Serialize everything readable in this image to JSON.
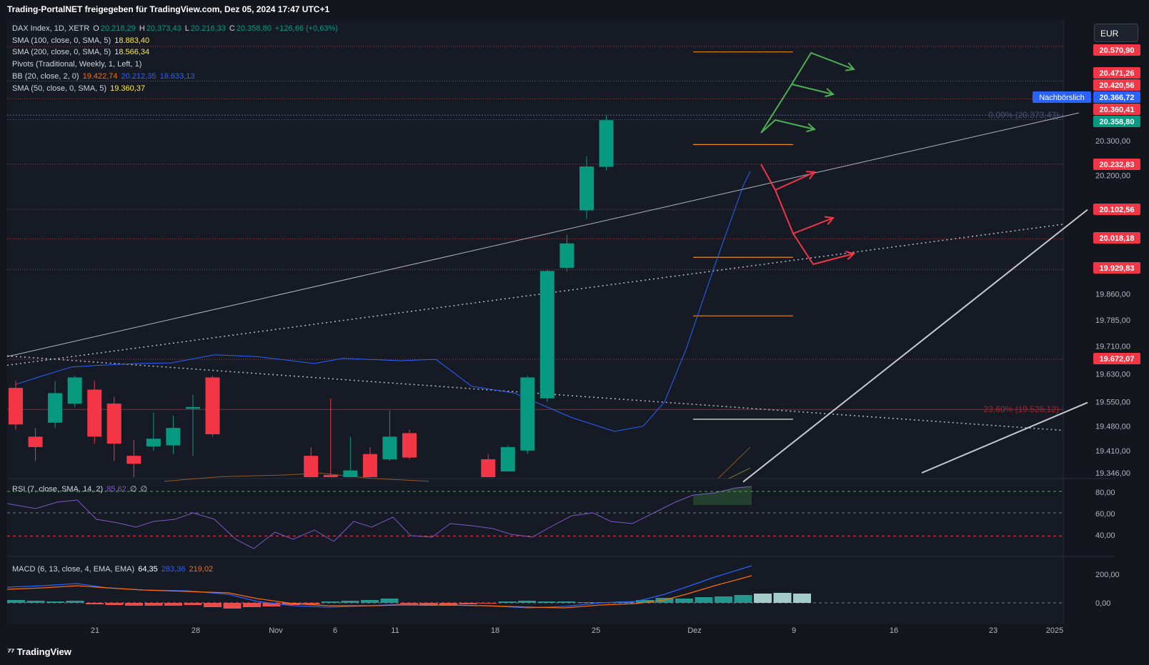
{
  "header": {
    "text": "Trading-PortalNET freigegeben für TradingView.com, Dez 05, 2024 17:47 UTC+1"
  },
  "footer": {
    "logo_text": "TradingView"
  },
  "currency_button": "EUR",
  "legend": {
    "symbol": "DAX Index, 1D, XETR",
    "o_label": "O",
    "o_value": "20.218,29",
    "h_label": "H",
    "h_value": "20.373,43",
    "l_label": "L",
    "l_value": "20.216,33",
    "c_label": "C",
    "c_value": "20.358,80",
    "change": "+126,66 (+0,63%)",
    "sma100_label": "SMA (100, close, 0, SMA, 5)",
    "sma100_value": "18.883,40",
    "sma200_label": "SMA (200, close, 0, SMA, 5)",
    "sma200_value": "18.566,34",
    "pivots_label": "Pivots (Traditional, Weekly, 1, Left, 1)",
    "bb_label": "BB (20, close, 2, 0)",
    "bb_basis": "19.422,74",
    "bb_upper": "20.212,35",
    "bb_lower": "18.633,13",
    "sma50_label": "SMA (50, close, 0, SMA, 5)",
    "sma50_value": "19.360,37",
    "rsi_label": "RSI (7, close, SMA, 14, 2)",
    "rsi_value": "85,62",
    "rsi_extra1": "∅",
    "rsi_extra2": "∅",
    "macd_label": "MACD (6, 13, close, 4, EMA, EMA)",
    "macd_hist": "64,35",
    "macd_line": "283,36",
    "macd_signal": "219,02"
  },
  "colors": {
    "bg": "#14161d",
    "up": "#089981",
    "down": "#f23645",
    "grid": "#1e222d",
    "pivot": "#b2363f",
    "fib": "#e88b17",
    "bb": "#2962ff",
    "sma50": "#f5a623",
    "rsi": "#7e57c2",
    "macd": "#2962ff",
    "signal": "#ff6d00",
    "green_arrow": "#4caf50",
    "red_arrow": "#f23645"
  },
  "chart_data": {
    "type": "candlestick",
    "y_axis_ticks": [
      "20.300,00",
      "20.200,00",
      "19.860,00",
      "19.785,00",
      "19.710,00",
      "19.630,00",
      "19.550,00",
      "19.480,00",
      "19.410,00",
      "19.346,00"
    ],
    "x_axis_ticks": [
      "21",
      "28",
      "Nov",
      "6",
      "11",
      "18",
      "25",
      "Dez",
      "9",
      "16",
      "23",
      "2025"
    ],
    "price_labels": [
      {
        "text": "20.570,90",
        "kind": "pivot"
      },
      {
        "text": "20.471,26",
        "kind": "pivot"
      },
      {
        "text": "20.420,56",
        "kind": "pivot"
      },
      {
        "text": "20.366,72",
        "kind": "post",
        "tag": "Nachbörslich"
      },
      {
        "text": "20.360,41",
        "kind": "pivot"
      },
      {
        "text": "20.358,80",
        "kind": "last"
      },
      {
        "text": "20.232,83",
        "kind": "pivot"
      },
      {
        "text": "20.102,56",
        "kind": "pivot"
      },
      {
        "text": "20.018,18",
        "kind": "pivot"
      },
      {
        "text": "19.929,83",
        "kind": "pivot"
      },
      {
        "text": "19.672,07",
        "kind": "pivot"
      }
    ],
    "fib_labels": [
      "0,00% (20.373,43)",
      "23,60% (19.528,12)"
    ],
    "candles": [
      {
        "o": 19590,
        "h": 19610,
        "l": 19470,
        "c": 19485
      },
      {
        "o": 19450,
        "h": 19475,
        "l": 19380,
        "c": 19420
      },
      {
        "o": 19490,
        "h": 19610,
        "l": 19475,
        "c": 19575
      },
      {
        "o": 19545,
        "h": 19625,
        "l": 19535,
        "c": 19620
      },
      {
        "o": 19585,
        "h": 19610,
        "l": 19430,
        "c": 19450
      },
      {
        "o": 19545,
        "h": 19565,
        "l": 19380,
        "c": 19430
      },
      {
        "o": 19395,
        "h": 19440,
        "l": 19320,
        "c": 19372
      },
      {
        "o": 19422,
        "h": 19520,
        "l": 19410,
        "c": 19444
      },
      {
        "o": 19425,
        "h": 19510,
        "l": 19400,
        "c": 19475
      },
      {
        "o": 19530,
        "h": 19570,
        "l": 19395,
        "c": 19535
      },
      {
        "o": 19620,
        "h": 19625,
        "l": 19450,
        "c": 19457
      },
      {
        "o": 19395,
        "h": 19420,
        "l": 19150,
        "c": 19160
      },
      {
        "o": 19340,
        "h": 19560,
        "l": 19220,
        "c": 19230
      },
      {
        "o": 19326,
        "h": 19450,
        "l": 19200,
        "c": 19353
      },
      {
        "o": 19400,
        "h": 19420,
        "l": 19230,
        "c": 19240
      },
      {
        "o": 19385,
        "h": 19525,
        "l": 19380,
        "c": 19450
      },
      {
        "o": 19460,
        "h": 19470,
        "l": 19385,
        "c": 19390
      },
      {
        "o": 19385,
        "h": 19400,
        "l": 19270,
        "c": 19300
      },
      {
        "o": 19350,
        "h": 19425,
        "l": 19355,
        "c": 19420
      },
      {
        "o": 19410,
        "h": 19625,
        "l": 19400,
        "c": 19620
      },
      {
        "o": 19560,
        "h": 19930,
        "l": 19550,
        "c": 19926
      },
      {
        "o": 19935,
        "h": 20030,
        "l": 19925,
        "c": 20005
      },
      {
        "o": 20100,
        "h": 20255,
        "l": 20075,
        "c": 20226
      },
      {
        "o": 20225,
        "h": 20373,
        "l": 20215,
        "c": 20359
      }
    ],
    "rsi_levels": [
      "80,00",
      "60,00",
      "40,00"
    ],
    "macd_levels": [
      "200,00",
      "0,00"
    ]
  }
}
